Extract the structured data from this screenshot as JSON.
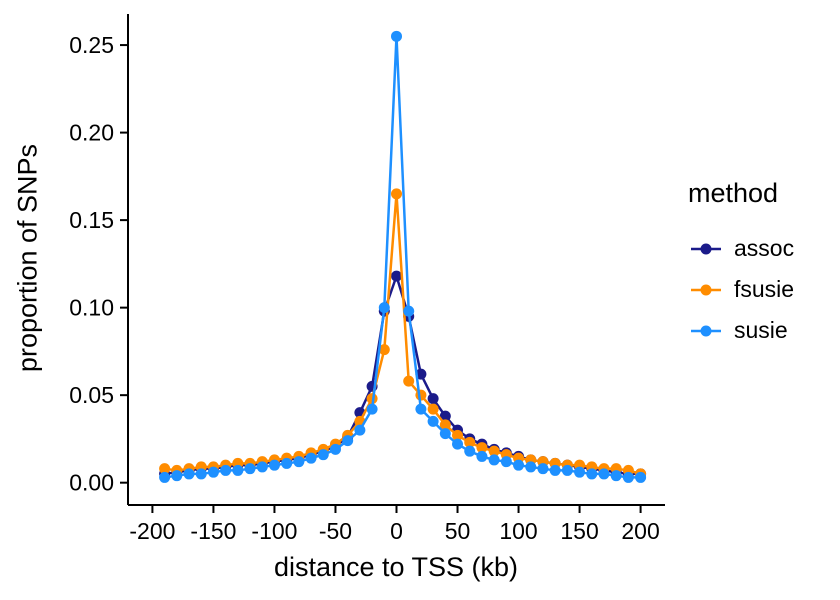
{
  "chart_data": {
    "type": "line",
    "title": "",
    "xlabel": "distance to TSS (kb)",
    "ylabel": "proportion of SNPs",
    "legend_title": "method",
    "legend_position": "right",
    "grid": false,
    "background": "#FFFFFF",
    "axis_color": "#000000",
    "xlim": [
      -200,
      200
    ],
    "ylim": [
      0,
      0.255
    ],
    "x_tick_values": [
      -200,
      -150,
      -100,
      -50,
      0,
      50,
      100,
      150,
      200
    ],
    "x_tick_labels": [
      "-200",
      "-150",
      "-100",
      "-50",
      "0",
      "50",
      "100",
      "150",
      "200"
    ],
    "y_tick_values": [
      0,
      0.05,
      0.1,
      0.15,
      0.2,
      0.25
    ],
    "y_tick_labels": [
      "0.00",
      "0.05",
      "0.10",
      "0.15",
      "0.20",
      "0.25"
    ],
    "x": [
      -190,
      -180,
      -170,
      -160,
      -150,
      -140,
      -130,
      -120,
      -110,
      -100,
      -90,
      -80,
      -70,
      -60,
      -50,
      -40,
      -30,
      -20,
      -10,
      0,
      10,
      20,
      30,
      40,
      50,
      60,
      70,
      80,
      90,
      100,
      110,
      120,
      130,
      140,
      150,
      160,
      170,
      180,
      190,
      200
    ],
    "series": [
      {
        "name": "assoc",
        "color": "#1b1b8a",
        "values": [
          0.005,
          0.006,
          0.007,
          0.008,
          0.008,
          0.009,
          0.01,
          0.01,
          0.011,
          0.012,
          0.013,
          0.014,
          0.016,
          0.018,
          0.021,
          0.026,
          0.04,
          0.055,
          0.098,
          0.118,
          0.095,
          0.062,
          0.048,
          0.038,
          0.03,
          0.025,
          0.022,
          0.019,
          0.017,
          0.015,
          0.013,
          0.012,
          0.011,
          0.01,
          0.009,
          0.008,
          0.007,
          0.006,
          0.005,
          0.005
        ]
      },
      {
        "name": "fsusie",
        "color": "#FF8C00",
        "values": [
          0.008,
          0.007,
          0.008,
          0.009,
          0.009,
          0.01,
          0.011,
          0.011,
          0.012,
          0.013,
          0.014,
          0.015,
          0.017,
          0.019,
          0.022,
          0.027,
          0.035,
          0.048,
          0.076,
          0.165,
          0.058,
          0.05,
          0.042,
          0.033,
          0.027,
          0.023,
          0.02,
          0.018,
          0.016,
          0.014,
          0.013,
          0.012,
          0.011,
          0.01,
          0.01,
          0.009,
          0.008,
          0.008,
          0.007,
          0.005
        ]
      },
      {
        "name": "susie",
        "color": "#1E90FF",
        "values": [
          0.003,
          0.004,
          0.005,
          0.005,
          0.006,
          0.007,
          0.007,
          0.008,
          0.009,
          0.01,
          0.011,
          0.012,
          0.014,
          0.016,
          0.019,
          0.024,
          0.03,
          0.042,
          0.1,
          0.255,
          0.098,
          0.042,
          0.035,
          0.028,
          0.022,
          0.018,
          0.015,
          0.013,
          0.012,
          0.01,
          0.009,
          0.008,
          0.007,
          0.007,
          0.006,
          0.005,
          0.005,
          0.004,
          0.003,
          0.003
        ]
      }
    ]
  }
}
